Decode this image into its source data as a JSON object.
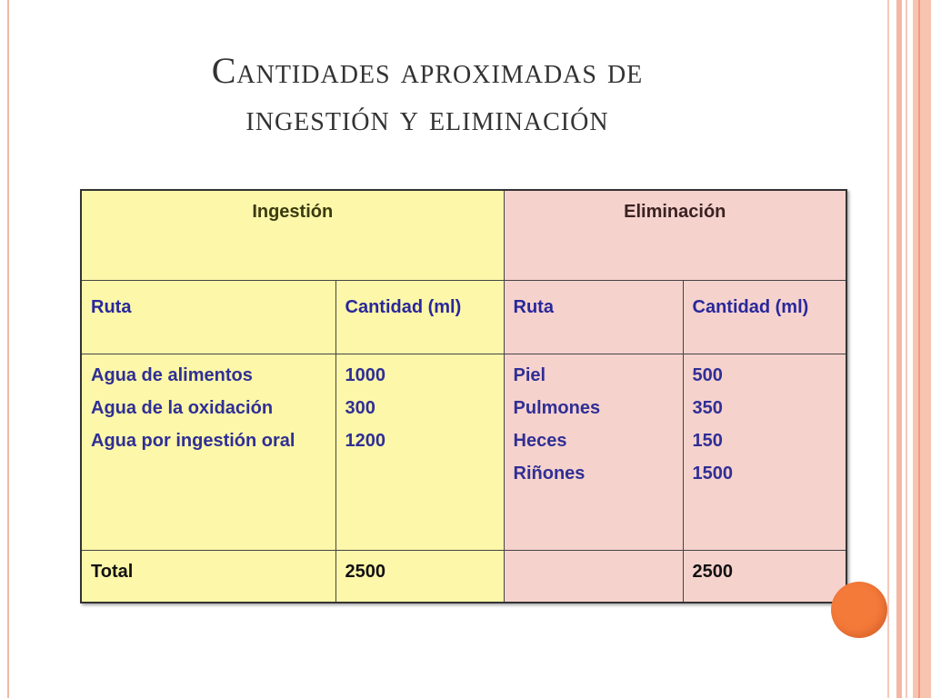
{
  "slide": {
    "title_line1": "Cantidades aproximadas de",
    "title_line2": "ingestión y eliminación"
  },
  "table": {
    "header": {
      "ingestion": "Ingestión",
      "eliminacion": "Eliminación"
    },
    "subheader": {
      "ing_ruta": "Ruta",
      "ing_cantidad": "Cantidad (ml)",
      "eli_ruta": "Ruta",
      "eli_cantidad": "Cantidad (ml)"
    },
    "ingestion_rows": [
      {
        "ruta": "Agua de alimentos",
        "cantidad": "1000"
      },
      {
        "ruta": "Agua de la oxidación",
        "cantidad": "300"
      },
      {
        "ruta": "Agua por ingestión oral",
        "cantidad": "1200"
      }
    ],
    "eliminacion_rows": [
      {
        "ruta": "Piel",
        "cantidad": "500"
      },
      {
        "ruta": "Pulmones",
        "cantidad": "350"
      },
      {
        "ruta": "Heces",
        "cantidad": "150"
      },
      {
        "ruta": "Riñones",
        "cantidad": "1500"
      }
    ],
    "total": {
      "label": "Total",
      "ingestion": "2500",
      "eliminacion_label": "",
      "eliminacion": "2500"
    }
  },
  "colors": {
    "ingestion_bg": "#fdf7a9",
    "eliminacion_bg": "#f6d2cd",
    "text_blue": "#2f2f95",
    "accent_orange": "#f47a3a"
  }
}
